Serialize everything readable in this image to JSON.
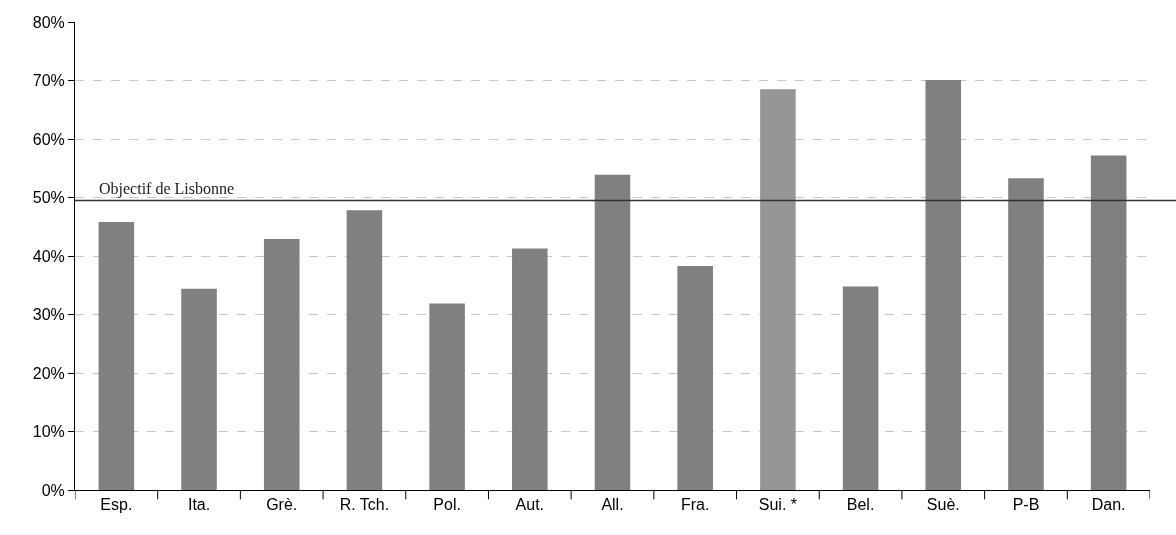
{
  "chart_data": {
    "type": "bar",
    "categories": [
      "Esp.",
      "Ita.",
      "Grè.",
      "R. Tch.",
      "Pol.",
      "Aut.",
      "All.",
      "Fra.",
      "Sui. *",
      "Bel.",
      "Suè.",
      "P-B",
      "Dan."
    ],
    "values": [
      45.8,
      34.4,
      42.9,
      47.8,
      31.9,
      41.3,
      53.9,
      38.3,
      68.5,
      34.8,
      70.1,
      53.3,
      57.2
    ],
    "colors": [
      "#808080",
      "#808080",
      "#808080",
      "#808080",
      "#808080",
      "#808080",
      "#808080",
      "#808080",
      "#969696",
      "#808080",
      "#808080",
      "#808080",
      "#808080"
    ],
    "ylim": [
      0,
      80
    ],
    "yticks": [
      {
        "value": 0,
        "label": "0%"
      },
      {
        "value": 10,
        "label": "10%"
      },
      {
        "value": 20,
        "label": "20%"
      },
      {
        "value": 30,
        "label": "30%"
      },
      {
        "value": 40,
        "label": "40%"
      },
      {
        "value": 50,
        "label": "50%"
      },
      {
        "value": 60,
        "label": "60%"
      },
      {
        "value": 70,
        "label": "70%"
      },
      {
        "value": 80,
        "label": "80%"
      }
    ],
    "grid": "y",
    "ref_lines": [
      {
        "axis": "y",
        "value": 49.5,
        "label": "Objectif de Lisbonne",
        "color": "#333333",
        "line_style": "solid"
      }
    ]
  }
}
